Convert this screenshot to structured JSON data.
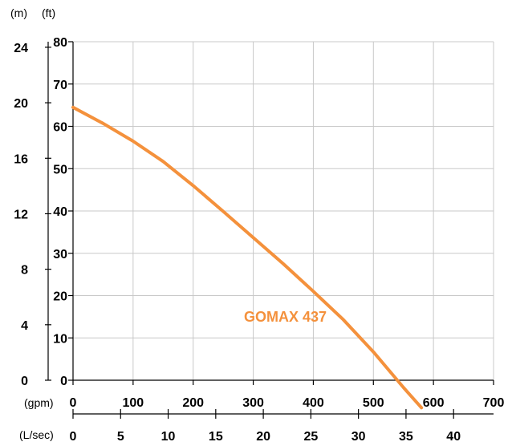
{
  "chart_data": {
    "type": "line",
    "units": {
      "left_outer": "(m)",
      "left_inner": "(ft)",
      "bottom_upper": "(gpm)",
      "bottom_lower": "(L/sec)"
    },
    "y_ft_ticks": [
      "0",
      "10",
      "20",
      "30",
      "40",
      "50",
      "60",
      "70",
      "80"
    ],
    "y_m_ticks": [
      "0",
      "4",
      "8",
      "12",
      "16",
      "20",
      "24"
    ],
    "x_gpm_ticks": [
      "0",
      "100",
      "200",
      "300",
      "400",
      "500",
      "600",
      "700"
    ],
    "x_lsec_ticks": [
      "0",
      "5",
      "10",
      "15",
      "20",
      "25",
      "30",
      "35",
      "40"
    ],
    "xlim_gpm": [
      0,
      700
    ],
    "ylim_ft": [
      0,
      80
    ],
    "ylim_m": [
      0,
      24.4
    ],
    "xlim_lsec": [
      0,
      44.2
    ],
    "grid": true,
    "color": "#F4913C",
    "series": [
      {
        "name": "GOMAX 437",
        "x": [
          0,
          50,
          100,
          150,
          200,
          250,
          300,
          350,
          400,
          450,
          500,
          550,
          580
        ],
        "y": [
          64.5,
          60.7,
          56.5,
          51.7,
          46,
          39.9,
          33.7,
          27.5,
          21,
          14.3,
          6.7,
          -1.7,
          -6.5
        ]
      }
    ],
    "annotation": "GOMAX 437"
  }
}
